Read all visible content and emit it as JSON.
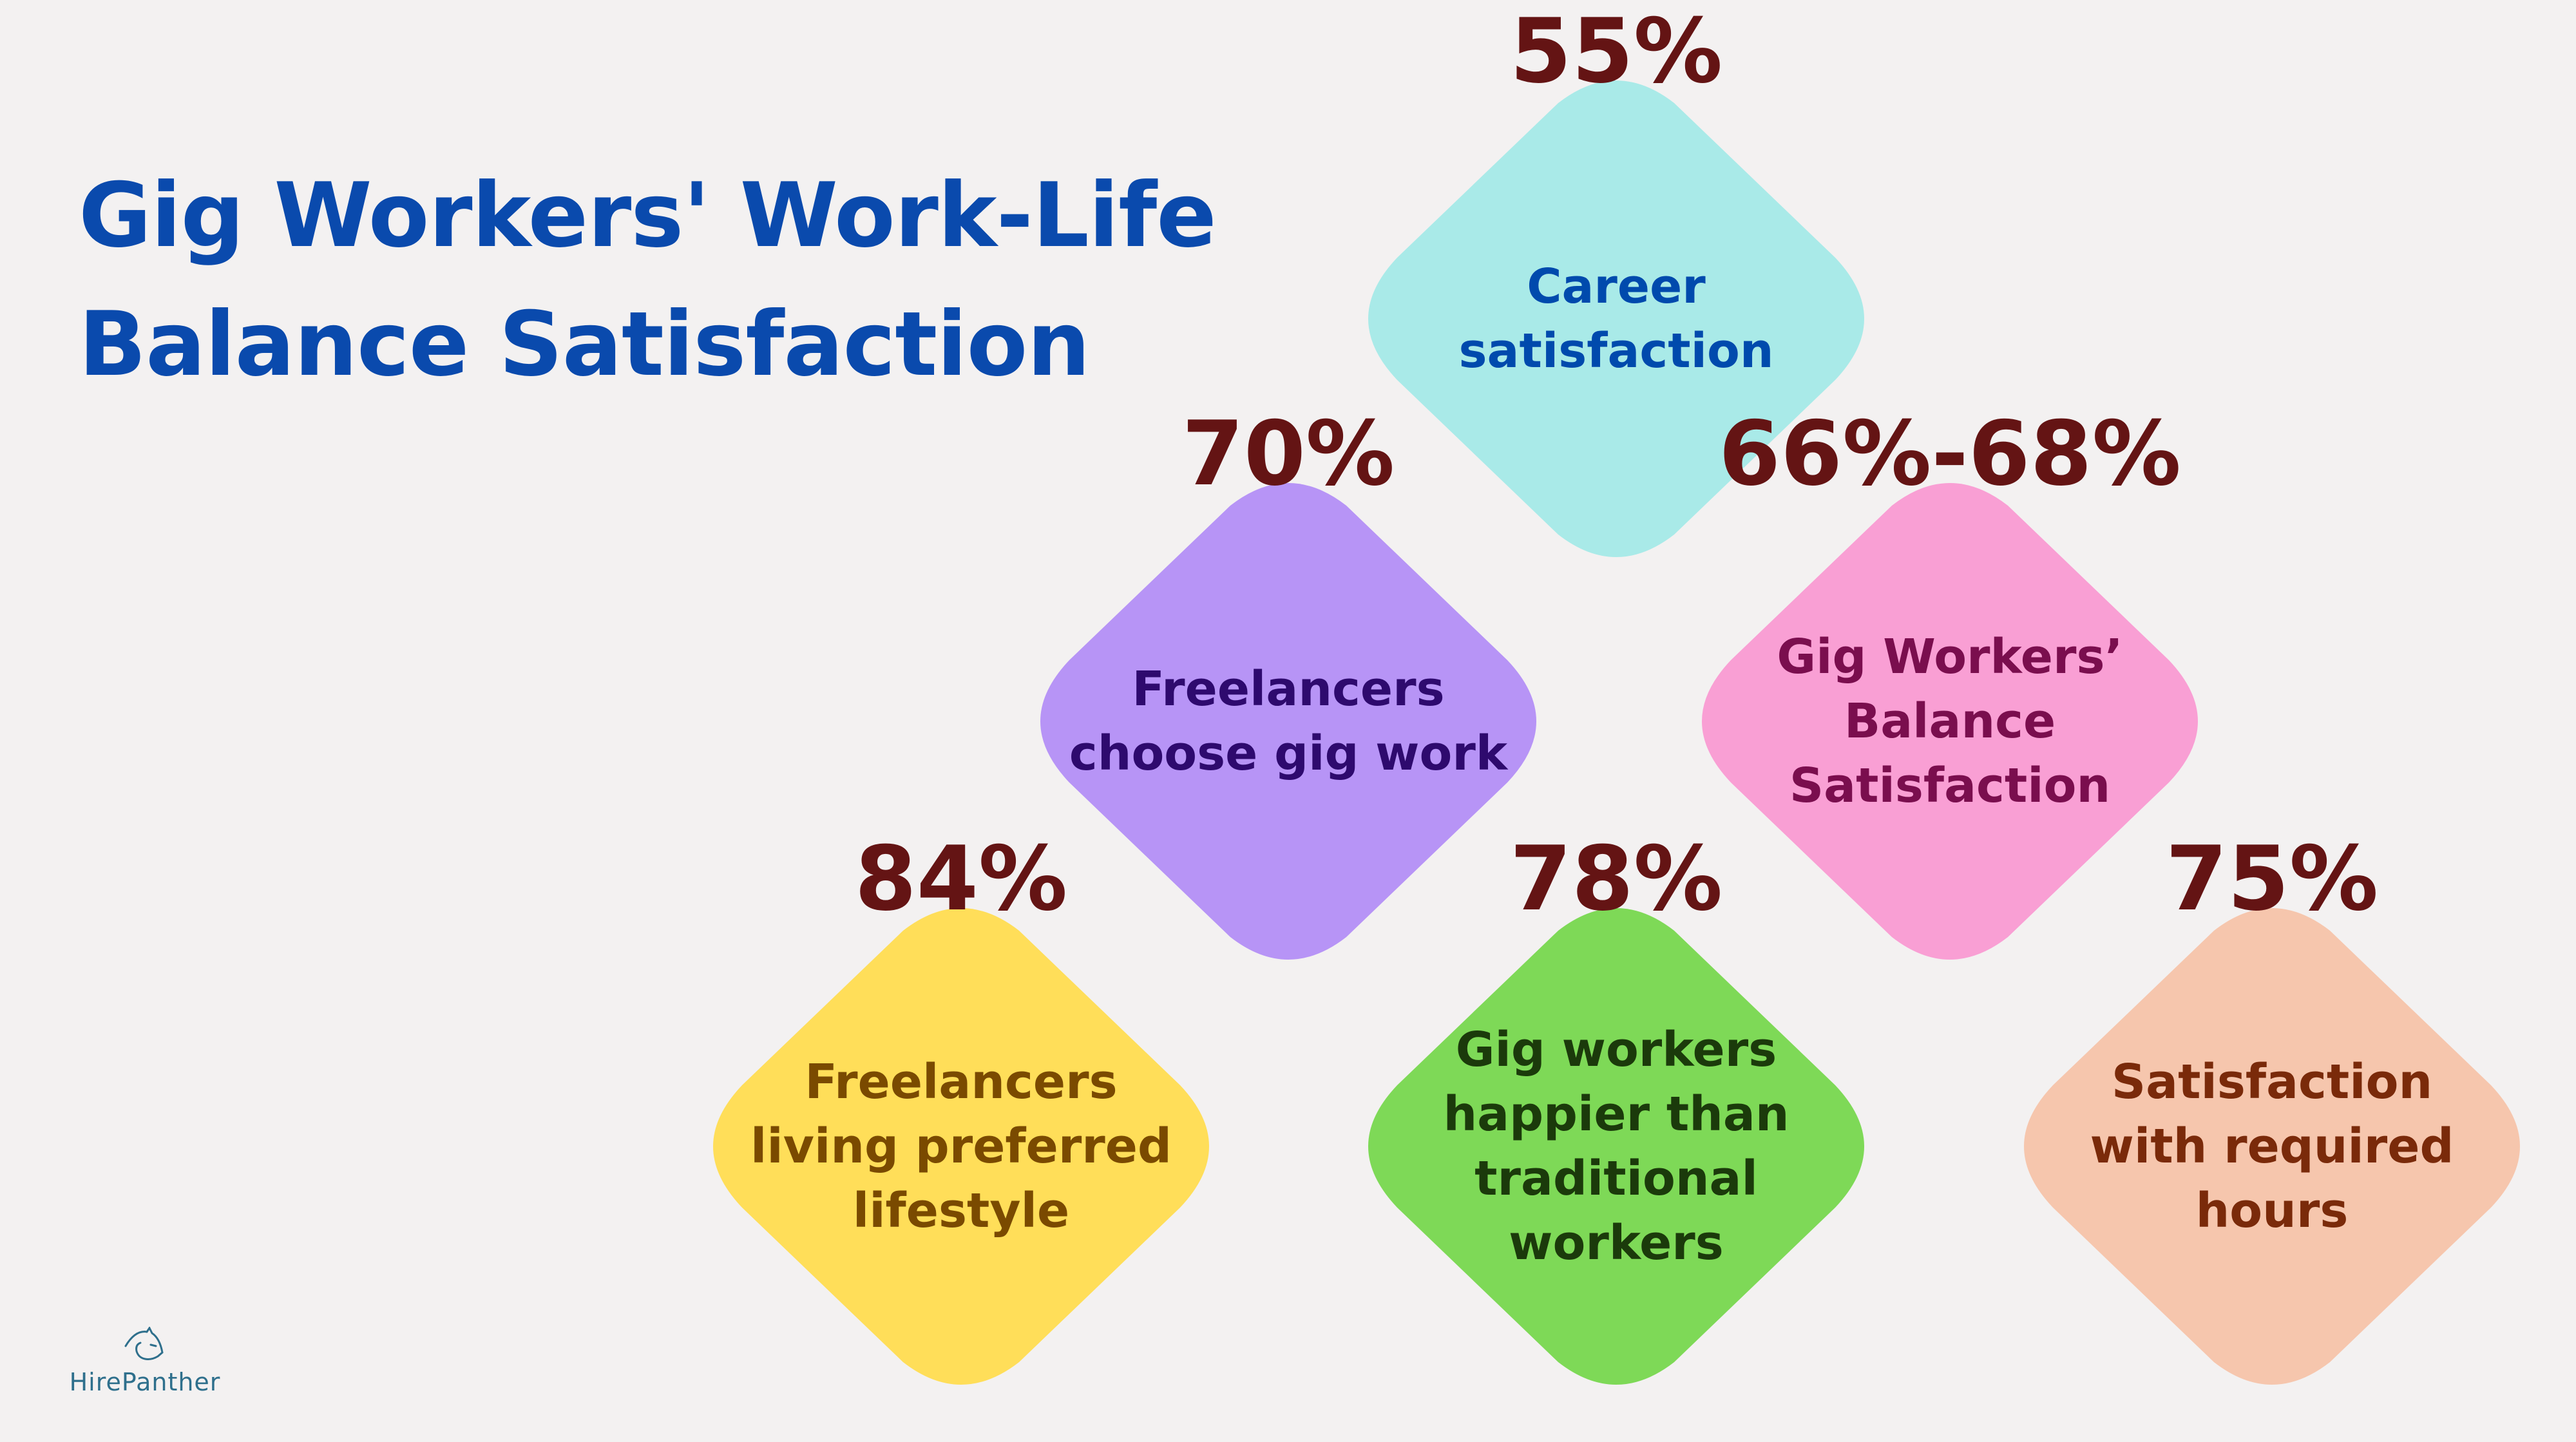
{
  "title_line1": "Gig Workers' Work-Life",
  "title_line2": "Balance Satisfaction",
  "colors": {
    "background": "#f3f1f1",
    "title": "#0a4aad",
    "percent": "#641414"
  },
  "items": [
    {
      "percent": "55%",
      "label": "Career satisfaction",
      "fill": "#a9eae8",
      "text_color": "#004aad"
    },
    {
      "percent": "70%",
      "label": "Freelancers choose gig work",
      "fill": "#b794f6",
      "text_color": "#2e0a6e"
    },
    {
      "percent": "66%-68%",
      "label": "Gig Workers’ Balance Satisfaction",
      "fill": "#f99fd4",
      "text_color": "#7a0e4e"
    },
    {
      "percent": "84%",
      "label": "Freelancers living preferred lifestyle",
      "fill": "#ffde59",
      "text_color": "#7a4a00"
    },
    {
      "percent": "78%",
      "label": "Gig workers happier than traditional workers",
      "fill": "#7ed957",
      "text_color": "#1b3a0b"
    },
    {
      "percent": "75%",
      "label": "Satisfaction with required hours",
      "fill": "#f6c6ad",
      "text_color": "#7a2a0a"
    }
  ],
  "logo": {
    "text": "HirePanther",
    "icon": "panther-head-icon"
  }
}
